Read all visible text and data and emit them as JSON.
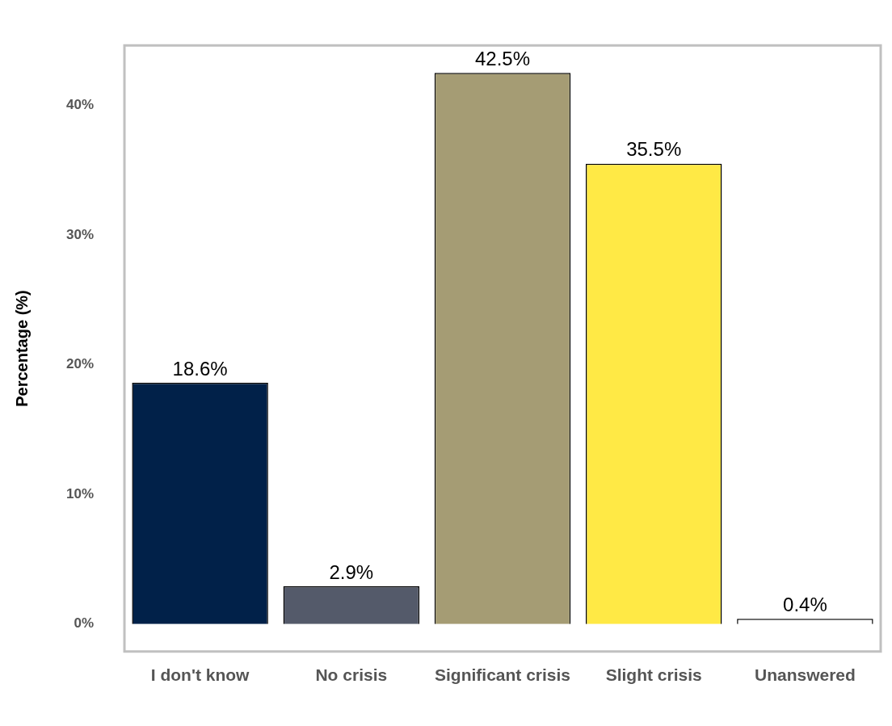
{
  "chart_data": {
    "type": "bar",
    "ylabel": "Percentage (%)",
    "categories": [
      "I don't know",
      "No crisis",
      "Significant crisis",
      "Slight crisis",
      "Unanswered"
    ],
    "values": [
      18.6,
      2.9,
      42.5,
      35.5,
      0.4
    ],
    "colors": [
      "#012149",
      "#545a6a",
      "#a59c74",
      "#ffe945",
      "#ffffff"
    ],
    "value_labels": [
      "18.6%",
      "2.9%",
      "42.5%",
      "35.5%",
      "0.4%"
    ],
    "ylim": [
      -2.125,
      44.625
    ],
    "yticks": [
      {
        "value": 0,
        "label": "0%"
      },
      {
        "value": 10,
        "label": "10%"
      },
      {
        "value": 20,
        "label": "20%"
      },
      {
        "value": 30,
        "label": "30%"
      },
      {
        "value": 40,
        "label": "40%"
      }
    ],
    "grid": false,
    "legend": false
  }
}
